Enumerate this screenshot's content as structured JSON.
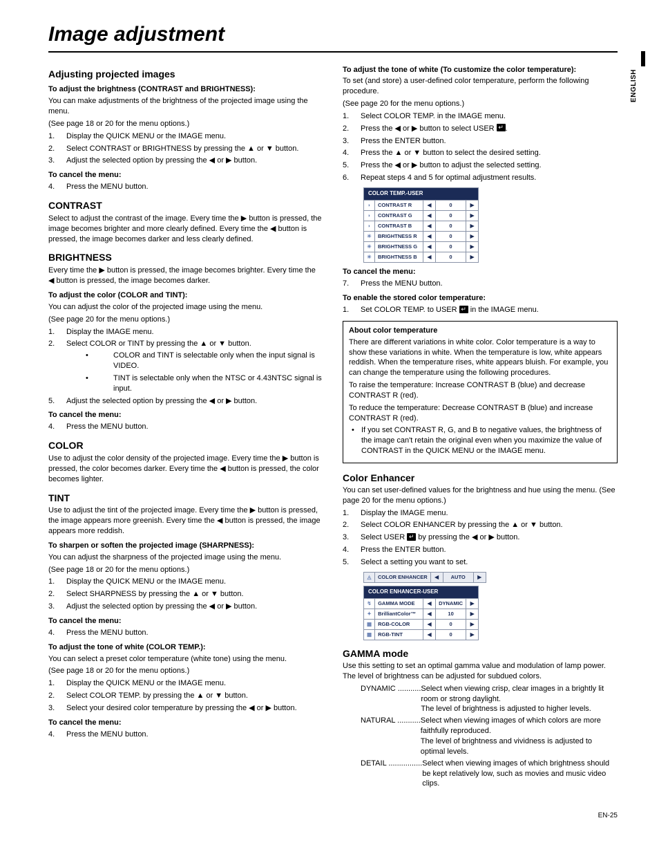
{
  "page_title": "Image adjustment",
  "side_label": "ENGLISH",
  "page_number": "EN-25",
  "left": {
    "h_adjust": "Adjusting projected images",
    "h_adjust_sub": "To adjust the brightness (CONTRAST and BRIGHTNESS):",
    "p_adjust": "You can make adjustments of the brightness of the projected image using the menu.",
    "ref1": "(See page 18 or 20 for the menu options.)",
    "steps_bright": [
      "Display the QUICK MENU or the IMAGE menu.",
      "Select CONTRAST or BRIGHTNESS by pressing the ▲ or ▼ button.",
      "Adjust the selected option by pressing the ◀ or ▶ button."
    ],
    "cancel": "To cancel the menu:",
    "step_cancel": "Press the MENU button.",
    "h_contrast": "CONTRAST",
    "p_contrast": "Select to adjust the contrast of the image. Every time the ▶ button is pressed, the image becomes brighter and more clearly defined. Every time the ◀ button is pressed, the image becomes darker and less clearly defined.",
    "h_brightness": "BRIGHTNESS",
    "p_brightness": "Every time the ▶ button is pressed, the image becomes brighter. Every time the ◀ button is pressed, the image becomes darker.",
    "sub_color": "To adjust the color (COLOR and TINT):",
    "p_color_adj": "You can adjust the color of the projected image using the menu.",
    "ref2": "(See page 20 for the menu options.)",
    "steps_color1": "Display the IMAGE menu.",
    "steps_color2": "Select COLOR or TINT by pressing the ▲ or ▼ button.",
    "bullet_c1": "COLOR and TINT is selectable only when the input signal is VIDEO.",
    "bullet_c2": "TINT is selectable only when the NTSC or 4.43NTSC signal is input.",
    "steps_color3": "Adjust the selected option by pressing the ◀ or ▶ button.",
    "h_color": "COLOR",
    "p_color": "Use to adjust the color density of the projected image. Every time the ▶ button is pressed, the color becomes darker. Every time the ◀ button is pressed, the color becomes lighter.",
    "h_tint": "TINT",
    "p_tint": "Use to adjust the tint of the projected image. Every time the ▶ button is pressed, the image appears more greenish. Every time the ◀ button is pressed, the image appears more reddish.",
    "sub_sharp": "To sharpen or soften the projected image (SHARPNESS):",
    "p_sharp": "You can adjust the sharpness of the projected image using the menu.",
    "ref3": "(See page 18 or 20 for the menu options.)",
    "steps_sharp": [
      "Display the QUICK MENU or the IMAGE menu.",
      "Select SHARPNESS by pressing the ▲ or ▼ button.",
      "Adjust the selected option by pressing the ◀ or ▶ button."
    ],
    "sub_tone": "To adjust the tone of white (COLOR TEMP.):",
    "p_tone": "You can select a preset color temperature (white tone) using the menu.",
    "ref4": "(See page 18 or 20 for the menu options.)",
    "steps_tone": [
      "Display the QUICK MENU or the IMAGE menu.",
      "Select COLOR TEMP. by pressing the ▲ or ▼ button.",
      "Select your desired color temperature by pressing the ◀ or ▶ button."
    ]
  },
  "right": {
    "sub_tone2": "To adjust the tone of white (To customize the color temperature):",
    "p_tone2": "To set (and store) a user-defined color temperature, perform the following procedure.",
    "ref1": "(See page 20 for the menu options.)",
    "steps_tone2": [
      "Select COLOR TEMP. in the IMAGE menu.",
      "Press the ◀ or ▶ button to select USER ⏎.",
      "Press the ENTER button.",
      "Press the ▲ or ▼ button to select the desired setting.",
      "Press the ◀ or ▶ button to adjust the selected setting.",
      "Repeat steps 4 and 5 for optimal adjustment results."
    ],
    "table_temp": {
      "header": "COLOR TEMP.-USER",
      "rows": [
        {
          "label": "CONTRAST R",
          "val": "0"
        },
        {
          "label": "CONTRAST G",
          "val": "0"
        },
        {
          "label": "CONTRAST B",
          "val": "0"
        },
        {
          "label": "BRIGHTNESS R",
          "val": "0"
        },
        {
          "label": "BRIGHTNESS G",
          "val": "0"
        },
        {
          "label": "BRIGHTNESS B",
          "val": "0"
        }
      ]
    },
    "cancel": "To cancel the menu:",
    "step_cancel7": "Press the MENU button.",
    "sub_enable": "To enable the stored color temperature:",
    "step_enable": "Set COLOR TEMP. to USER ⏎ in the IMAGE menu.",
    "box_head": "About color temperature",
    "box_p1": "There are different variations in white color. Color temperature is a way to show these variations in white. When the temperature is low, white appears reddish. When the temperature rises, white appears bluish. For example, you can change the temperature using the following procedures.",
    "box_p2": "To raise the temperature: Increase CONTRAST B (blue) and decrease CONTRAST R (red).",
    "box_p3": "To reduce the temperature: Decrease CONTRAST B (blue) and increase CONTRAST R (red).",
    "box_bullet": "If you set CONTRAST R, G, and B to negative values, the brightness of the image can't retain the original even when you maximize the value of CONTRAST in the QUICK MENU or the IMAGE menu.",
    "h_enhancer": "Color Enhancer",
    "p_enhancer": "You can set user-defined values for the brightness and hue using the menu. (See page 20 for the menu options.)",
    "steps_enh": [
      "Display the IMAGE menu.",
      "Select COLOR ENHANCER by pressing the ▲ or ▼ button.",
      "Select USER ⏎ by pressing the ◀ or ▶ button.",
      "Press the ENTER button.",
      "Select a setting you want to set."
    ],
    "table_head": {
      "label": "COLOR ENHANCER",
      "val": "AUTO"
    },
    "table_enh": {
      "header": "COLOR ENHANCER-USER",
      "rows": [
        {
          "label": "GAMMA MODE",
          "val": "DYNAMIC"
        },
        {
          "label": "BrilliantColor™",
          "val": "10"
        },
        {
          "label": "RGB-COLOR",
          "val": "0"
        },
        {
          "label": "RGB-TINT",
          "val": "0"
        }
      ]
    },
    "h_gamma": "GAMMA mode",
    "p_gamma": "Use this setting to set an optimal gamma value and modulation of lamp power. The level of brightness can be adjusted for subdued colors.",
    "gamma_rows": [
      {
        "k": "DYNAMIC ...........",
        "t": "Select when viewing crisp, clear images in a brightly lit room or strong daylight.\nThe level of brightness is adjusted to higher levels."
      },
      {
        "k": "NATURAL ...........",
        "t": "Select when viewing images of which colors are more faithfully reproduced.\nThe level of brightness and vividness is adjusted to optimal levels."
      },
      {
        "k": "DETAIL ................",
        "t": "Select when viewing images of which brightness should be kept relatively low, such as movies and music video clips."
      }
    ]
  }
}
